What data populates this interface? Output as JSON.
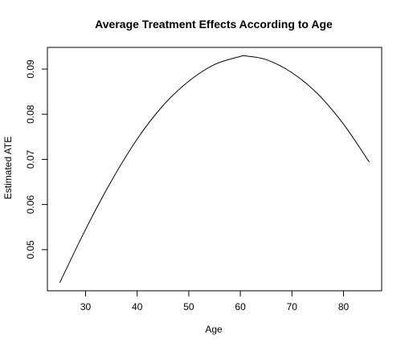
{
  "chart_data": {
    "type": "line",
    "title": "Average Treatment Effects According to Age",
    "xlabel": "Age",
    "ylabel": "Estimated ATE",
    "xlim": [
      22.6,
      87.4
    ],
    "ylim": [
      0.0409,
      0.0948
    ],
    "xticks": [
      "30",
      "40",
      "50",
      "60",
      "70",
      "80"
    ],
    "yticks": [
      "0.05",
      "0.06",
      "0.07",
      "0.08",
      "0.09"
    ],
    "grid": false,
    "legend": "none",
    "series": [
      {
        "color": "#000000",
        "x": [
          25,
          30,
          35,
          40,
          45,
          50,
          55,
          60,
          61,
          65,
          70,
          75,
          80,
          85
        ],
        "y": [
          0.0427,
          0.0545,
          0.0652,
          0.0745,
          0.0819,
          0.0873,
          0.091,
          0.0928,
          0.0929,
          0.0921,
          0.0892,
          0.0845,
          0.0778,
          0.0694
        ]
      }
    ]
  }
}
